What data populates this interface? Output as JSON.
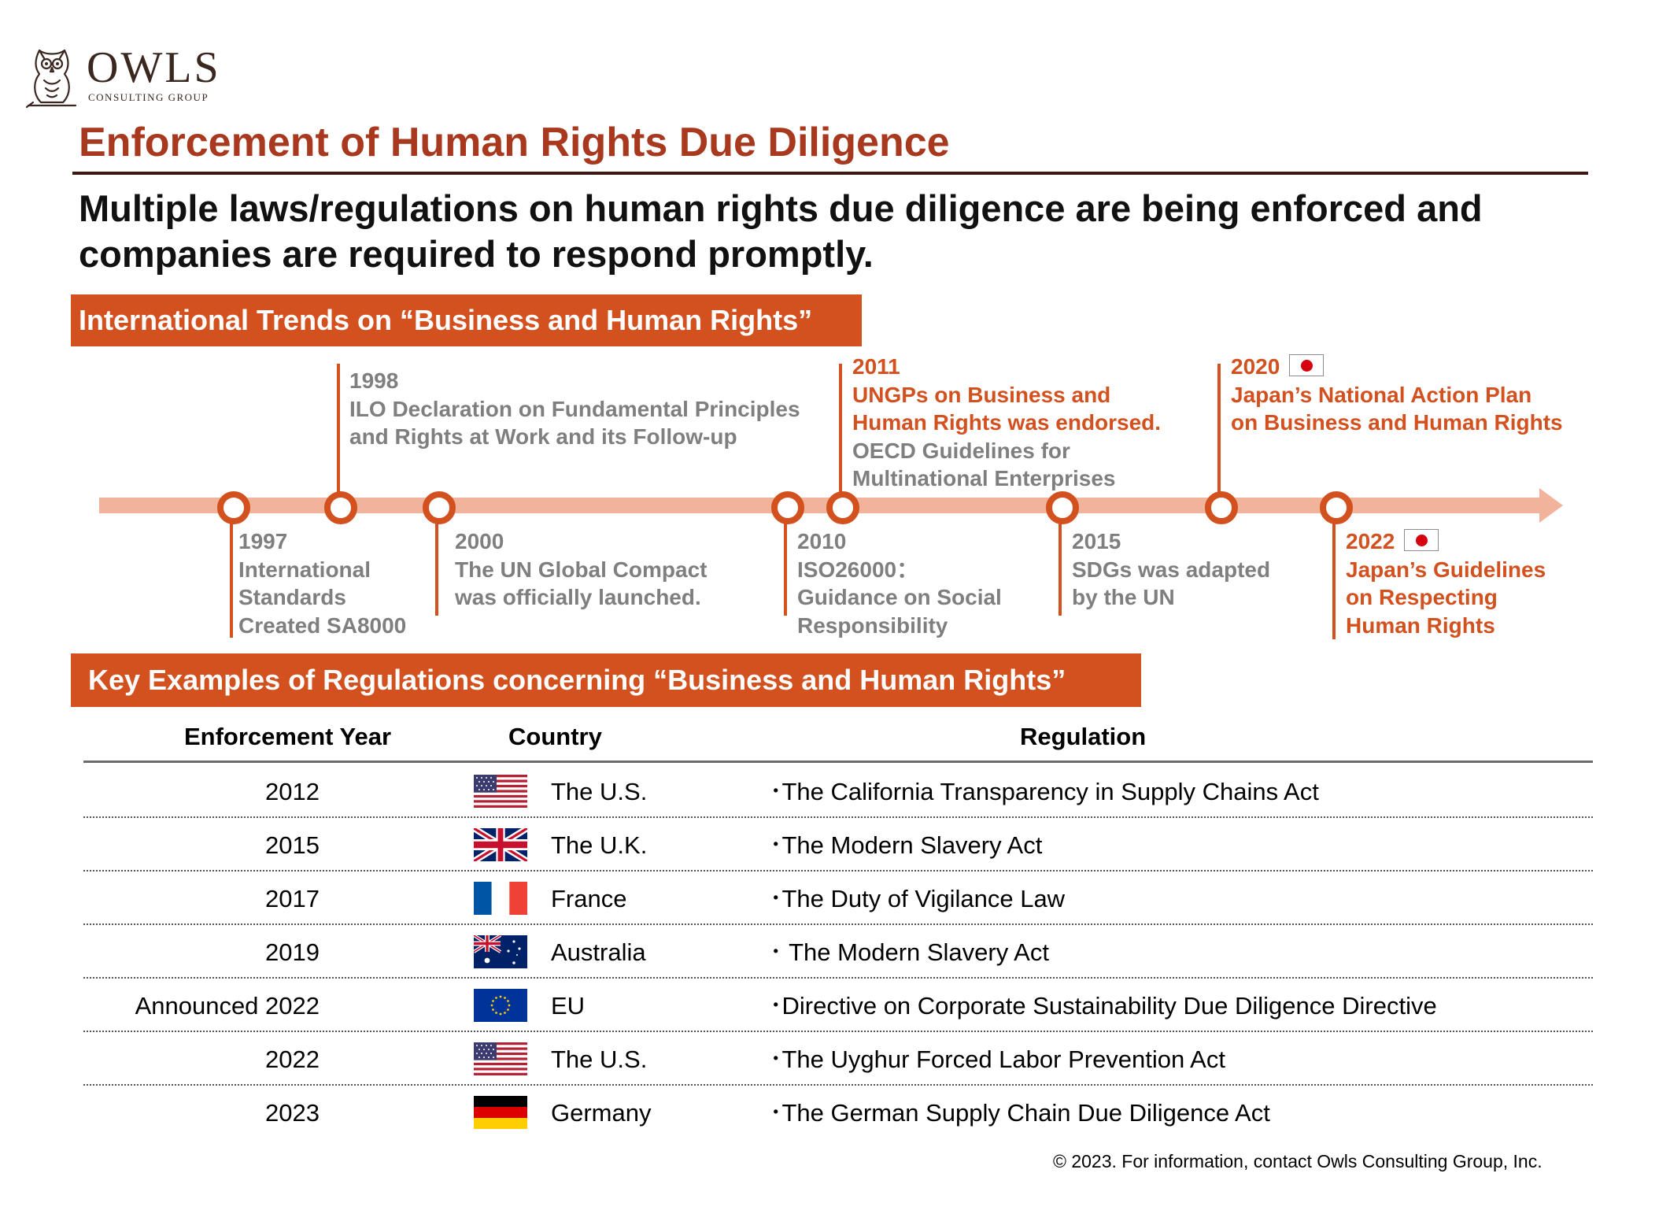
{
  "logo": {
    "name": "OWLS",
    "tagline": "CONSULTING GROUP",
    "icon": "owl-icon"
  },
  "page_title": "Enforcement of Human Rights Due Diligence",
  "lead_text": "Multiple laws/regulations on human rights due diligence are being enforced and companies are required to respond promptly.",
  "section1_title": "International Trends on “Business and Human Rights”",
  "timeline": {
    "e1997": {
      "year": "1997",
      "lines": [
        "International",
        "Standards",
        "Created SA8000"
      ]
    },
    "e1998": {
      "year": "1998",
      "lines": [
        "ILO Declaration on Fundamental Principles",
        "and Rights at Work and its Follow-up"
      ]
    },
    "e2000": {
      "year": "2000",
      "lines": [
        "The UN Global Compact",
        "was officially launched."
      ]
    },
    "e2010": {
      "year": "2010",
      "lines": [
        "ISO26000：",
        "Guidance on Social",
        "Responsibility"
      ]
    },
    "e2011": {
      "year": "2011",
      "highlight_lines": [
        "UNGPs on Business and",
        "Human Rights was endorsed."
      ],
      "lines": [
        "OECD Guidelines for",
        "Multinational Enterprises"
      ]
    },
    "e2015": {
      "year": "2015",
      "lines": [
        "SDGs was adapted",
        "by the UN"
      ]
    },
    "e2020": {
      "year": "2020",
      "highlight_lines": [
        "Japan’s National Action Plan",
        "on Business and Human Rights"
      ]
    },
    "e2022": {
      "year": "2022",
      "highlight_lines": [
        "Japan’s Guidelines",
        "on Respecting",
        "Human Rights"
      ]
    }
  },
  "section2_title": "Key Examples of Regulations concerning “Business and Human Rights”",
  "table": {
    "headers": {
      "year": "Enforcement Year",
      "country": "Country",
      "regulation": "Regulation"
    },
    "rows": [
      {
        "year": "2012",
        "flag": "us-flag-icon",
        "country": "The U.S.",
        "regulation": "･The California Transparency in Supply Chains Act"
      },
      {
        "year": "2015",
        "flag": "uk-flag-icon",
        "country": "The U.K.",
        "regulation": "･The Modern Slavery Act"
      },
      {
        "year": "2017",
        "flag": "france-flag-icon",
        "country": "France",
        "regulation": "･The Duty of Vigilance Law"
      },
      {
        "year": "2019",
        "flag": "australia-flag-icon",
        "country": "Australia",
        "regulation": "･ The Modern Slavery Act"
      },
      {
        "year": "Announced 2022",
        "flag": "eu-flag-icon",
        "country": "EU",
        "regulation": "･Directive on Corporate Sustainability Due Diligence Directive"
      },
      {
        "year": "2022",
        "flag": "us-flag-icon",
        "country": "The U.S.",
        "regulation": "･The Uyghur Forced Labor Prevention Act"
      },
      {
        "year": "2023",
        "flag": "germany-flag-icon",
        "country": "Germany",
        "regulation": "･The German Supply Chain Due Diligence Act"
      }
    ]
  },
  "footer": "© 2023. For information, contact Owls Consulting Group, Inc.",
  "colors": {
    "accent": "#d3501f",
    "title": "#a8381e",
    "timeline_bar": "#f2b39b",
    "muted_text": "#7f7f7f"
  }
}
